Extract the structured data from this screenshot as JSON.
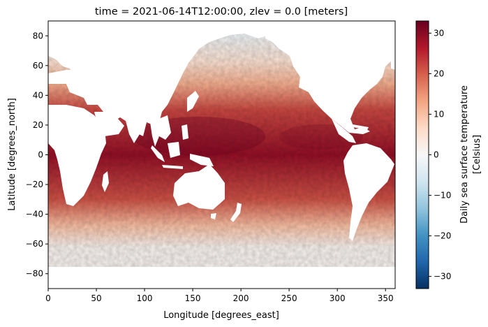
{
  "chart_data": {
    "type": "heatmap",
    "title": "time = 2021-06-14T12:00:00, zlev = 0.0 [meters]",
    "xlabel": "Longitude [degrees_east]",
    "ylabel": "Latitude [degrees_north]",
    "xlim": [
      0,
      360
    ],
    "ylim": [
      -90,
      90
    ],
    "x_ticks": [
      0,
      50,
      100,
      150,
      200,
      250,
      300,
      350
    ],
    "y_ticks": [
      80,
      60,
      40,
      20,
      0,
      -20,
      -40,
      -60,
      -80
    ],
    "colorbar": {
      "label_line1": "Daily sea surface temperature",
      "label_line2": "[Celsius]",
      "range": [
        -33,
        33
      ],
      "ticks": [
        30,
        20,
        10,
        0,
        -10,
        -20,
        -30
      ],
      "colormap": "RdBu_r",
      "colors": [
        "#053061",
        "#2166ac",
        "#4393c3",
        "#92c5de",
        "#d1e5f0",
        "#f7f7f7",
        "#fddbc7",
        "#f4a582",
        "#d6604d",
        "#b2182b",
        "#67001f"
      ]
    },
    "grid": false,
    "land_color": "#ffffff",
    "field_description_values_by_latitude_band": [
      {
        "lat_range": [
          70,
          90
        ],
        "sst": -1.5
      },
      {
        "lat_range": [
          55,
          70
        ],
        "sst": 5
      },
      {
        "lat_range": [
          40,
          55
        ],
        "sst": 12
      },
      {
        "lat_range": [
          20,
          40
        ],
        "sst": 22
      },
      {
        "lat_range": [
          -20,
          20
        ],
        "sst": 29
      },
      {
        "lat_range": [
          -40,
          -20
        ],
        "sst": 21
      },
      {
        "lat_range": [
          -55,
          -40
        ],
        "sst": 10
      },
      {
        "lat_range": [
          -70,
          -55
        ],
        "sst": 1
      }
    ]
  }
}
